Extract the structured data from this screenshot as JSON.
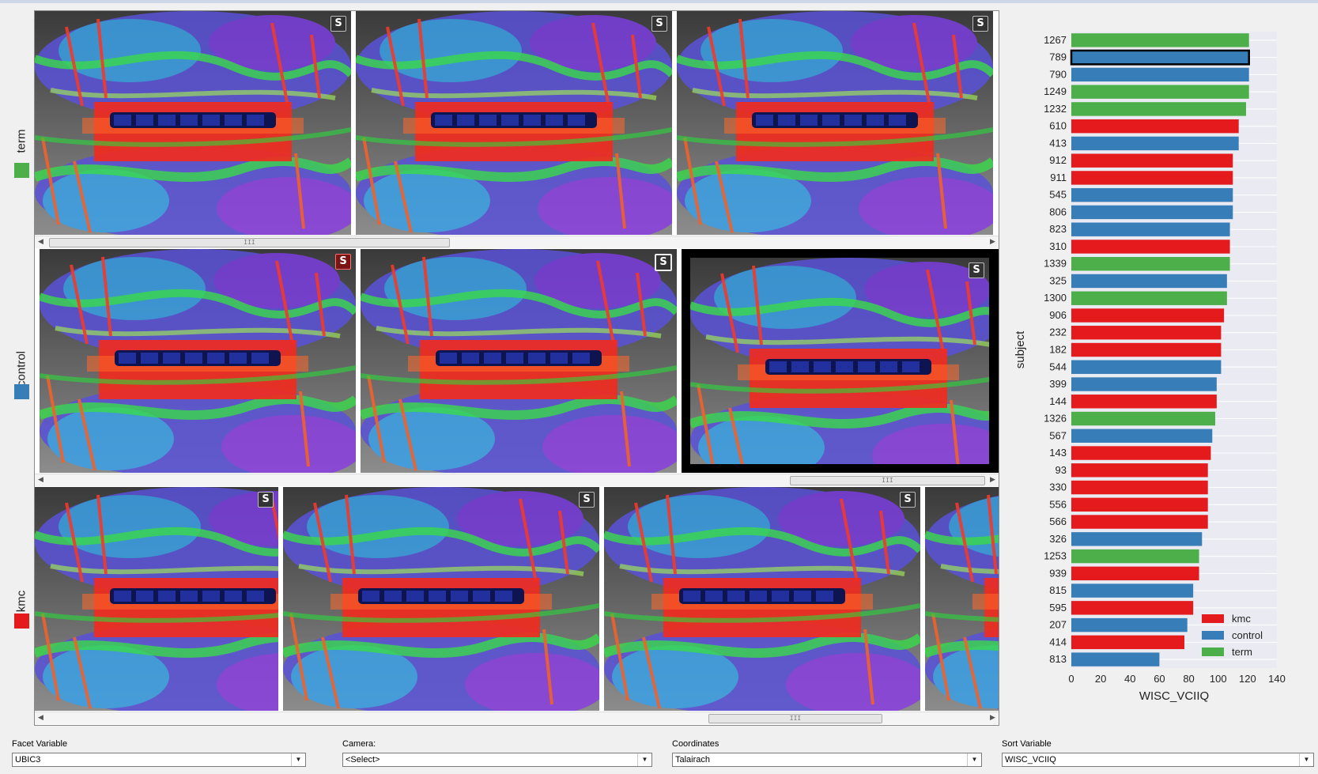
{
  "rows": [
    {
      "label": "term",
      "color": "#4daf4a"
    },
    {
      "label": "control",
      "color": "#377eb8"
    },
    {
      "label": "kmc",
      "color": "#e41a1c"
    }
  ],
  "tile_icon": "S",
  "controls": [
    {
      "label": "Facet Variable",
      "value": "UBIC3"
    },
    {
      "label": "Camera:",
      "value": "<Select>"
    },
    {
      "label": "Coordinates",
      "value": "Talairach"
    },
    {
      "label": "Sort Variable",
      "value": "WISC_VCIIQ"
    }
  ],
  "scrollbar_grip": "III",
  "chart_data": {
    "type": "bar",
    "orientation": "horizontal",
    "ylabel": "subject",
    "xlabel": "WISC_VCIIQ",
    "xlim": [
      0,
      140
    ],
    "xticks": [
      0,
      20,
      40,
      60,
      80,
      100,
      120,
      140
    ],
    "grid": true,
    "legend_position": "bottom-right",
    "legend": [
      {
        "name": "kmc",
        "color": "#e41a1c"
      },
      {
        "name": "control",
        "color": "#377eb8"
      },
      {
        "name": "term",
        "color": "#4daf4a"
      }
    ],
    "highlighted_subject": "789",
    "bars": [
      {
        "subject": "1267",
        "value": 121,
        "group": "term"
      },
      {
        "subject": "789",
        "value": 121,
        "group": "control"
      },
      {
        "subject": "790",
        "value": 121,
        "group": "control"
      },
      {
        "subject": "1249",
        "value": 121,
        "group": "term"
      },
      {
        "subject": "1232",
        "value": 119,
        "group": "term"
      },
      {
        "subject": "610",
        "value": 114,
        "group": "kmc"
      },
      {
        "subject": "413",
        "value": 114,
        "group": "control"
      },
      {
        "subject": "912",
        "value": 110,
        "group": "kmc"
      },
      {
        "subject": "911",
        "value": 110,
        "group": "kmc"
      },
      {
        "subject": "545",
        "value": 110,
        "group": "control"
      },
      {
        "subject": "806",
        "value": 110,
        "group": "control"
      },
      {
        "subject": "823",
        "value": 108,
        "group": "control"
      },
      {
        "subject": "310",
        "value": 108,
        "group": "kmc"
      },
      {
        "subject": "1339",
        "value": 108,
        "group": "term"
      },
      {
        "subject": "325",
        "value": 106,
        "group": "control"
      },
      {
        "subject": "1300",
        "value": 106,
        "group": "term"
      },
      {
        "subject": "906",
        "value": 104,
        "group": "kmc"
      },
      {
        "subject": "232",
        "value": 102,
        "group": "kmc"
      },
      {
        "subject": "182",
        "value": 102,
        "group": "kmc"
      },
      {
        "subject": "544",
        "value": 102,
        "group": "control"
      },
      {
        "subject": "399",
        "value": 99,
        "group": "control"
      },
      {
        "subject": "144",
        "value": 99,
        "group": "kmc"
      },
      {
        "subject": "1326",
        "value": 98,
        "group": "term"
      },
      {
        "subject": "567",
        "value": 96,
        "group": "control"
      },
      {
        "subject": "143",
        "value": 95,
        "group": "kmc"
      },
      {
        "subject": "93",
        "value": 93,
        "group": "kmc"
      },
      {
        "subject": "330",
        "value": 93,
        "group": "kmc"
      },
      {
        "subject": "556",
        "value": 93,
        "group": "kmc"
      },
      {
        "subject": "566",
        "value": 93,
        "group": "kmc"
      },
      {
        "subject": "326",
        "value": 89,
        "group": "control"
      },
      {
        "subject": "1253",
        "value": 87,
        "group": "term"
      },
      {
        "subject": "939",
        "value": 87,
        "group": "kmc"
      },
      {
        "subject": "815",
        "value": 83,
        "group": "control"
      },
      {
        "subject": "595",
        "value": 83,
        "group": "kmc"
      },
      {
        "subject": "207",
        "value": 79,
        "group": "control"
      },
      {
        "subject": "414",
        "value": 77,
        "group": "kmc"
      },
      {
        "subject": "813",
        "value": 60,
        "group": "control"
      }
    ]
  }
}
